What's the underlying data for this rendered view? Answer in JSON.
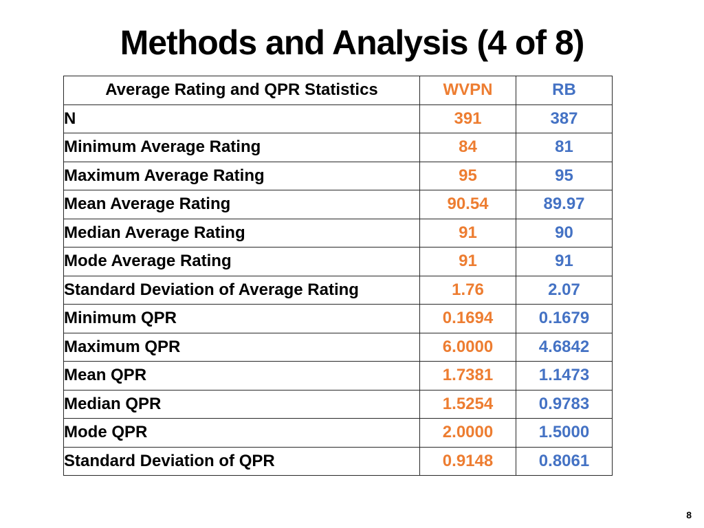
{
  "slide": {
    "title": "Methods and Analysis (4 of 8)",
    "page_number": "8"
  },
  "colors": {
    "wvpn_accent": "#ED7D31",
    "rb_accent": "#4472C4",
    "table_border": "#262626",
    "text": "#000000",
    "background": "#FFFFFF"
  },
  "table": {
    "columns": [
      "Average Rating and QPR Statistics",
      "WVPN",
      "RB"
    ],
    "rows": [
      {
        "label": "N",
        "wvpn": "391",
        "rb": "387"
      },
      {
        "label": "Minimum Average Rating",
        "wvpn": "84",
        "rb": "81"
      },
      {
        "label": "Maximum Average Rating",
        "wvpn": "95",
        "rb": "95"
      },
      {
        "label": "Mean Average Rating",
        "wvpn": "90.54",
        "rb": "89.97"
      },
      {
        "label": "Median Average Rating",
        "wvpn": "91",
        "rb": "90"
      },
      {
        "label": "Mode Average Rating",
        "wvpn": "91",
        "rb": "91"
      },
      {
        "label": "Standard Deviation of Average Rating",
        "wvpn": "1.76",
        "rb": "2.07"
      },
      {
        "label": "Minimum QPR",
        "wvpn": "0.1694",
        "rb": "0.1679"
      },
      {
        "label": "Maximum QPR",
        "wvpn": "6.0000",
        "rb": "4.6842"
      },
      {
        "label": "Mean QPR",
        "wvpn": "1.7381",
        "rb": "1.1473"
      },
      {
        "label": "Median QPR",
        "wvpn": "1.5254",
        "rb": "0.9783"
      },
      {
        "label": "Mode QPR",
        "wvpn": "2.0000",
        "rb": "1.5000"
      },
      {
        "label": "Standard Deviation of QPR",
        "wvpn": "0.9148",
        "rb": "0.8061"
      }
    ]
  }
}
